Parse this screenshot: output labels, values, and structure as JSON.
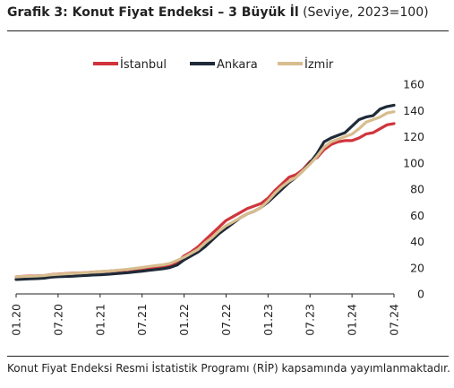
{
  "header": {
    "title_bold": "Grafik 3: Konut Fiyat Endeksi – 3 Büyük İl",
    "title_sub": "(Seviye, 2023=100)"
  },
  "footnote": "Konut Fiyat Endeksi Resmi İstatistik Programı (RİP) kapsamında yayımlanmaktadır.",
  "chart_data": {
    "type": "line",
    "title": "Grafik 3: Konut Fiyat Endeksi – 3 Büyük İl (Seviye, 2023=100)",
    "xlabel": "",
    "ylabel": "",
    "ylim": [
      0,
      160
    ],
    "yticks": [
      0,
      20,
      40,
      60,
      80,
      100,
      120,
      140,
      160
    ],
    "y_axis_side": "right",
    "grid": false,
    "legend_position": "top",
    "x": [
      "01.20",
      "02.20",
      "03.20",
      "04.20",
      "05.20",
      "06.20",
      "07.20",
      "08.20",
      "09.20",
      "10.20",
      "11.20",
      "12.20",
      "01.21",
      "02.21",
      "03.21",
      "04.21",
      "05.21",
      "06.21",
      "07.21",
      "08.21",
      "09.21",
      "10.21",
      "11.21",
      "12.21",
      "01.22",
      "02.22",
      "03.22",
      "04.22",
      "05.22",
      "06.22",
      "07.22",
      "08.22",
      "09.22",
      "10.22",
      "11.22",
      "12.22",
      "01.23",
      "02.23",
      "03.23",
      "04.23",
      "05.23",
      "06.23",
      "07.23",
      "08.23",
      "09.23",
      "10.23",
      "11.23",
      "12.23",
      "01.24",
      "02.24",
      "03.24",
      "04.24",
      "05.24",
      "06.24",
      "07.24"
    ],
    "xtick_labels": [
      "01.20",
      "07.20",
      "01.21",
      "07.21",
      "01.22",
      "07.22",
      "01.23",
      "07.23",
      "01.24",
      "07.24"
    ],
    "series": [
      {
        "name": "İstanbul",
        "color": "#d0343c",
        "values": [
          13,
          13.5,
          13.7,
          13.8,
          14,
          14.8,
          15.2,
          15.5,
          15.8,
          16,
          16.3,
          16.7,
          17,
          17.3,
          17.7,
          18,
          18.4,
          18.9,
          19.5,
          20,
          20.5,
          21,
          21.8,
          24,
          29,
          32,
          36,
          41,
          46,
          51,
          56,
          59,
          62,
          65,
          67,
          69,
          73,
          79,
          84,
          89,
          91,
          95,
          101,
          104,
          110,
          114,
          116,
          117,
          117,
          119,
          122,
          123,
          126,
          129,
          130
        ]
      },
      {
        "name": "Ankara",
        "color": "#1f2a38",
        "values": [
          11,
          11.3,
          11.5,
          11.7,
          12,
          12.8,
          13.1,
          13.3,
          13.5,
          13.8,
          14.1,
          14.4,
          14.6,
          15,
          15.4,
          15.8,
          16.2,
          16.8,
          17.4,
          18,
          18.6,
          19.2,
          20.2,
          22,
          26,
          29,
          32,
          36,
          41,
          46,
          50,
          54,
          58,
          61,
          63,
          66,
          70,
          75,
          80,
          85,
          89,
          94,
          100,
          107,
          116,
          119,
          121,
          123,
          128,
          133,
          135,
          136,
          141,
          143,
          144
        ]
      },
      {
        "name": "İzmir",
        "color": "#d7bd8e",
        "values": [
          13,
          13.3,
          13.5,
          13.7,
          14,
          14.6,
          15,
          15.3,
          15.6,
          15.9,
          16.2,
          16.6,
          17,
          17.4,
          17.8,
          18.3,
          18.8,
          19.5,
          20.2,
          21,
          21.6,
          22.2,
          23.3,
          25.5,
          28,
          31,
          34,
          39,
          43,
          48,
          52,
          55,
          58,
          61,
          63,
          66,
          71,
          77,
          82,
          86,
          89,
          94,
          99,
          105,
          112,
          116,
          118,
          120,
          122,
          126,
          131,
          133,
          135,
          138,
          139
        ]
      }
    ]
  }
}
